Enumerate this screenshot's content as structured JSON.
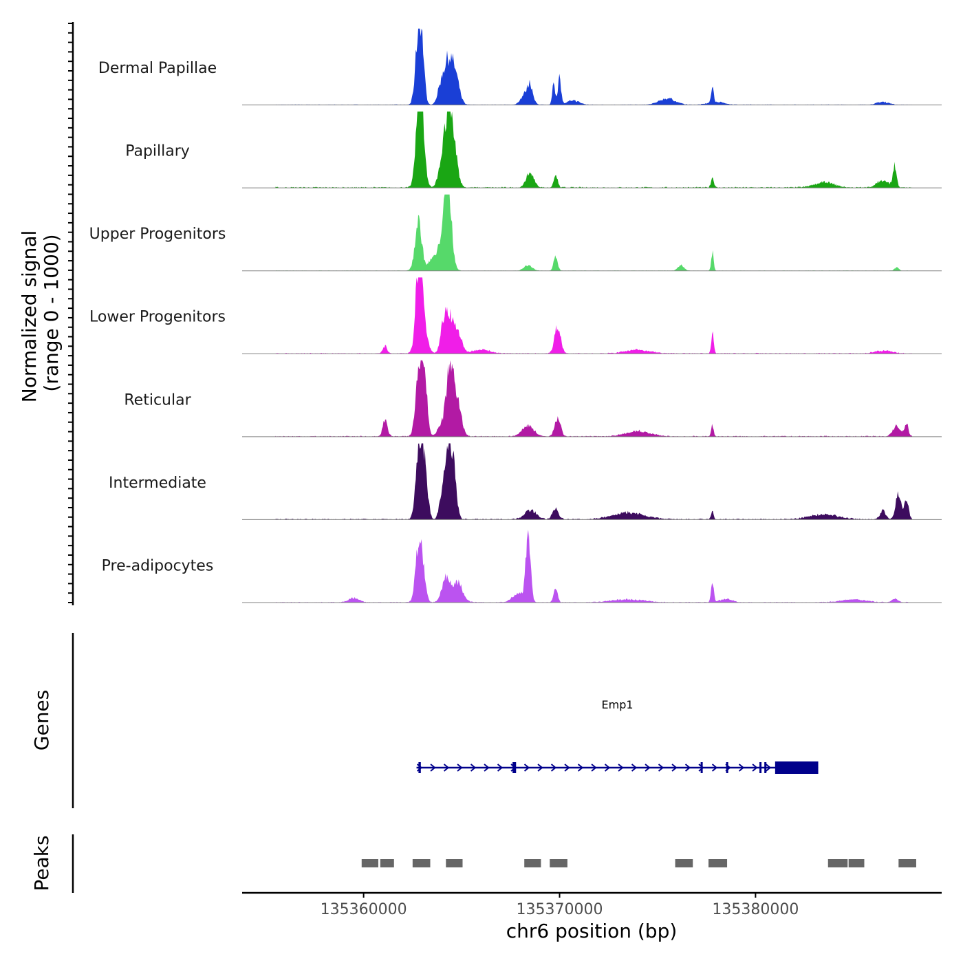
{
  "chart_data": {
    "type": "area",
    "title": "",
    "xlabel": "chr6 position (bp)",
    "ylabel": [
      "Normalized signal",
      "(range 0 - 1000)"
    ],
    "xlim": [
      135353800,
      135389500
    ],
    "x_ticks": [
      135360000,
      135370000,
      135380000
    ],
    "x_tick_labels": [
      "135360000",
      "135370000",
      "135380000"
    ],
    "ylim": [
      0,
      1000
    ],
    "signal_extent": [
      135355500,
      135388000
    ],
    "tracks": [
      {
        "name": "Dermal Papillae",
        "color": "#1a3fd6",
        "peaks": [
          [
            135362800,
            1000,
            150
          ],
          [
            135363000,
            550,
            120
          ],
          [
            135364300,
            620,
            260
          ],
          [
            135364700,
            300,
            200
          ],
          [
            135363900,
            120,
            150
          ],
          [
            135368500,
            260,
            150
          ],
          [
            135368200,
            120,
            200
          ],
          [
            135369700,
            360,
            70
          ],
          [
            135370000,
            370,
            80
          ],
          [
            135370700,
            60,
            300
          ],
          [
            135375500,
            90,
            400
          ],
          [
            135377800,
            250,
            60
          ],
          [
            135378000,
            40,
            400
          ],
          [
            135386500,
            40,
            300
          ]
        ],
        "baseline": 18
      },
      {
        "name": "Papillary",
        "color": "#1aa614",
        "peaks": [
          [
            135362800,
            1000,
            150
          ],
          [
            135363000,
            700,
            150
          ],
          [
            135364300,
            920,
            230
          ],
          [
            135364600,
            400,
            200
          ],
          [
            135363900,
            150,
            150
          ],
          [
            135368500,
            200,
            200
          ],
          [
            135369800,
            160,
            100
          ],
          [
            135377800,
            150,
            70
          ],
          [
            135386500,
            100,
            300
          ],
          [
            135387100,
            290,
            90
          ],
          [
            135383500,
            70,
            500
          ]
        ],
        "baseline": 35
      },
      {
        "name": "Upper Progenitors",
        "color": "#56d96a",
        "peaks": [
          [
            135362800,
            700,
            170
          ],
          [
            135364300,
            1000,
            180
          ],
          [
            135364100,
            500,
            250
          ],
          [
            135363500,
            150,
            200
          ],
          [
            135368400,
            80,
            200
          ],
          [
            135369800,
            200,
            100
          ],
          [
            135376200,
            80,
            150
          ],
          [
            135377800,
            270,
            60
          ],
          [
            135387200,
            50,
            100
          ]
        ],
        "baseline": 12
      },
      {
        "name": "Lower Progenitors",
        "color": "#f01ee8",
        "peaks": [
          [
            135361100,
            110,
            100
          ],
          [
            135362800,
            1000,
            150
          ],
          [
            135363000,
            600,
            200
          ],
          [
            135364300,
            600,
            220
          ],
          [
            135364800,
            300,
            200
          ],
          [
            135364000,
            150,
            120
          ],
          [
            135366000,
            60,
            400
          ],
          [
            135369900,
            400,
            150
          ],
          [
            135377800,
            300,
            60
          ],
          [
            135374000,
            50,
            600
          ],
          [
            135386500,
            40,
            400
          ]
        ],
        "baseline": 30
      },
      {
        "name": "Reticular",
        "color": "#b21aa4",
        "peaks": [
          [
            135361100,
            220,
            120
          ],
          [
            135362800,
            1000,
            150
          ],
          [
            135363100,
            900,
            140
          ],
          [
            135364400,
            950,
            200
          ],
          [
            135364800,
            400,
            200
          ],
          [
            135363900,
            120,
            150
          ],
          [
            135368400,
            150,
            300
          ],
          [
            135369900,
            260,
            150
          ],
          [
            135374000,
            70,
            600
          ],
          [
            135377800,
            170,
            60
          ],
          [
            135387200,
            140,
            200
          ],
          [
            135387700,
            170,
            100
          ]
        ],
        "baseline": 30
      },
      {
        "name": "Intermediate",
        "color": "#3d0c5e",
        "peaks": [
          [
            135362800,
            1000,
            150
          ],
          [
            135363100,
            800,
            150
          ],
          [
            135364300,
            1000,
            200
          ],
          [
            135364600,
            500,
            150
          ],
          [
            135363900,
            150,
            100
          ],
          [
            135368500,
            130,
            300
          ],
          [
            135369800,
            150,
            150
          ],
          [
            135373500,
            90,
            800
          ],
          [
            135377800,
            110,
            60
          ],
          [
            135383500,
            70,
            700
          ],
          [
            135387300,
            400,
            130
          ],
          [
            135387700,
            300,
            100
          ],
          [
            135386500,
            120,
            150
          ]
        ],
        "baseline": 35
      },
      {
        "name": "Pre-adipocytes",
        "color": "#bb53f0",
        "peaks": [
          [
            135359500,
            60,
            250
          ],
          [
            135362800,
            700,
            160
          ],
          [
            135363000,
            400,
            150
          ],
          [
            135364200,
            350,
            200
          ],
          [
            135364800,
            280,
            250
          ],
          [
            135368400,
            1000,
            120
          ],
          [
            135367900,
            120,
            300
          ],
          [
            135369800,
            200,
            100
          ],
          [
            135377800,
            300,
            70
          ],
          [
            135378500,
            50,
            300
          ],
          [
            135373500,
            40,
            800
          ],
          [
            135385000,
            40,
            600
          ],
          [
            135387100,
            50,
            150
          ]
        ],
        "baseline": 25
      }
    ],
    "genes": [
      {
        "name": "Emp1",
        "strand": "+",
        "start": 135362700,
        "end": 135383200,
        "exons": [
          [
            135362800,
            135362920
          ],
          [
            135367600,
            135367780
          ],
          [
            135377200,
            135377260
          ],
          [
            135378500,
            135378570
          ],
          [
            135380200,
            135380280
          ],
          [
            135380450,
            135380530
          ],
          [
            135381000,
            135383200
          ]
        ]
      }
    ],
    "peaks_track_label": "Peaks",
    "genes_track_label": "Genes",
    "peak_regions": [
      [
        135359900,
        135360750
      ],
      [
        135360850,
        135361550
      ],
      [
        135362500,
        135363400
      ],
      [
        135364200,
        135365050
      ],
      [
        135368200,
        135369050
      ],
      [
        135369500,
        135370400
      ],
      [
        135375900,
        135376800
      ],
      [
        135377600,
        135378550
      ],
      [
        135383700,
        135384700
      ],
      [
        135384750,
        135385550
      ],
      [
        135387300,
        135388200
      ]
    ],
    "colors": {
      "gene": "#00008b",
      "peak": "#666666",
      "baseline": "#808080",
      "axis": "#000000"
    }
  }
}
